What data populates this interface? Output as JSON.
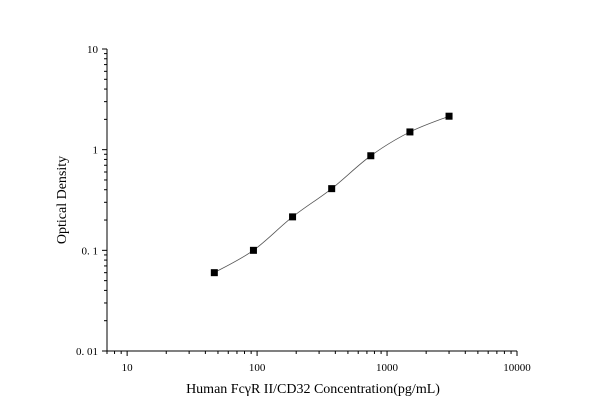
{
  "chart_data": {
    "type": "scatter",
    "title": "",
    "xlabel": "Human FcγR II/CD32 Concentration(pg/mL)",
    "ylabel": "Optical Density",
    "x_scale": "log",
    "y_scale": "log",
    "xlim": [
      7,
      10000
    ],
    "ylim": [
      0.01,
      10
    ],
    "x_ticks": [
      10,
      100,
      1000,
      10000
    ],
    "x_tick_labels": [
      "10",
      "100",
      "1000",
      "10000"
    ],
    "y_ticks": [
      0.01,
      0.1,
      1,
      10
    ],
    "y_tick_labels": [
      "0. 01",
      "0. 1",
      "1",
      "10"
    ],
    "grid": false,
    "series": [
      {
        "marker": "square",
        "fit_curve": true,
        "x": [
          46.875,
          93.75,
          187.5,
          375,
          750,
          1500,
          3000
        ],
        "y": [
          0.06,
          0.1,
          0.215,
          0.41,
          0.87,
          1.5,
          2.15
        ]
      }
    ],
    "colors": {
      "axis": "#000000",
      "marker": "#000000",
      "curve": "#555555"
    }
  }
}
